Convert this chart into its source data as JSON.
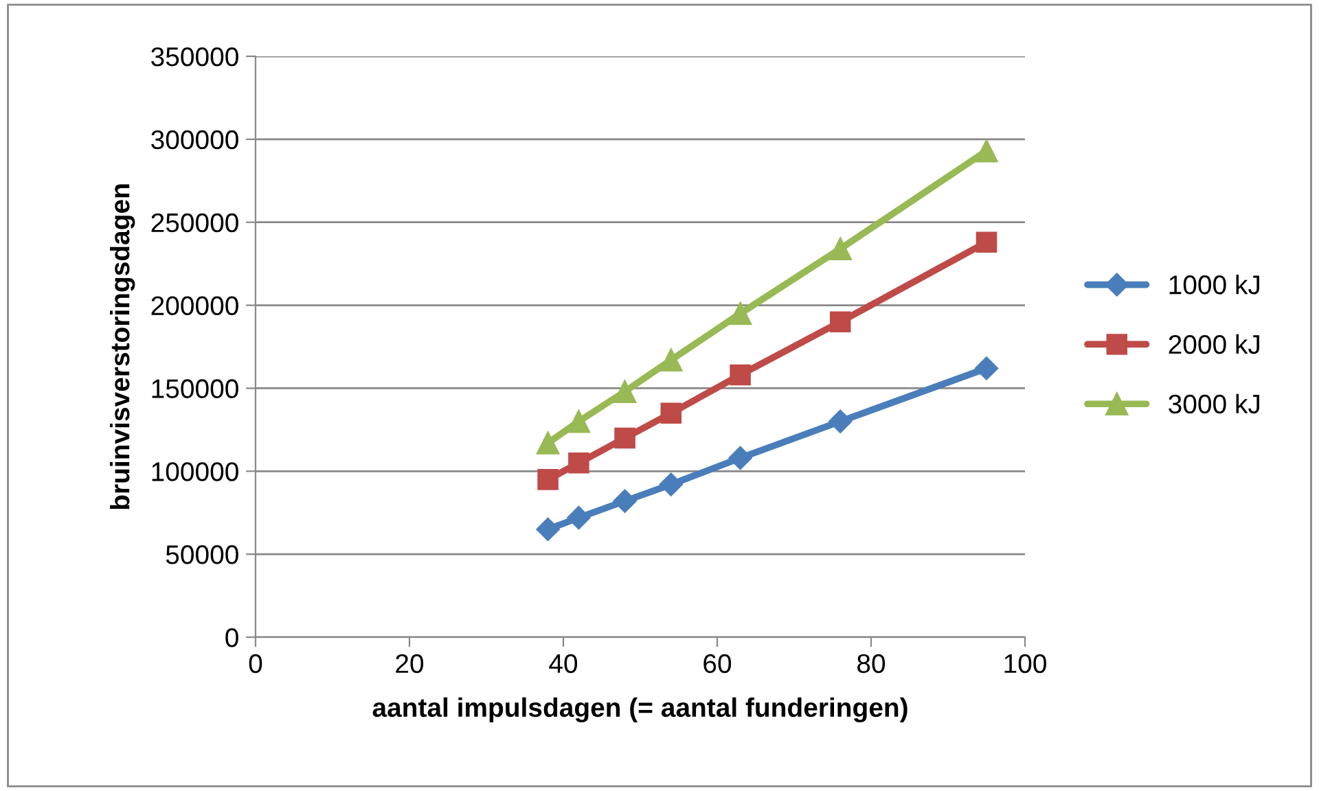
{
  "chart_data": {
    "type": "line",
    "xlabel": "aantal impulsdagen (= aantal funderingen)",
    "ylabel": "bruinvisverstoringsdagen",
    "x": [
      38,
      42,
      48,
      54,
      63,
      76,
      95
    ],
    "series": [
      {
        "name": "1000 kJ",
        "color": "#4a7ebb",
        "marker": "diamond",
        "values": [
          65000,
          72000,
          82000,
          92000,
          108000,
          130000,
          162000
        ]
      },
      {
        "name": "2000 kJ",
        "color": "#be4b48",
        "marker": "square",
        "values": [
          95000,
          105000,
          120000,
          135000,
          158000,
          190000,
          238000
        ]
      },
      {
        "name": "3000 kJ",
        "color": "#98b954",
        "marker": "triangle",
        "values": [
          117000,
          130000,
          148000,
          167000,
          195000,
          234000,
          293000
        ]
      }
    ],
    "xlim": [
      0,
      100
    ],
    "xticks": [
      0,
      20,
      40,
      60,
      80,
      100
    ],
    "ylim": [
      0,
      350000
    ],
    "yticks": [
      0,
      50000,
      100000,
      150000,
      200000,
      250000,
      300000,
      350000
    ],
    "grid": "y",
    "legend": "right",
    "line_style": "solid"
  }
}
